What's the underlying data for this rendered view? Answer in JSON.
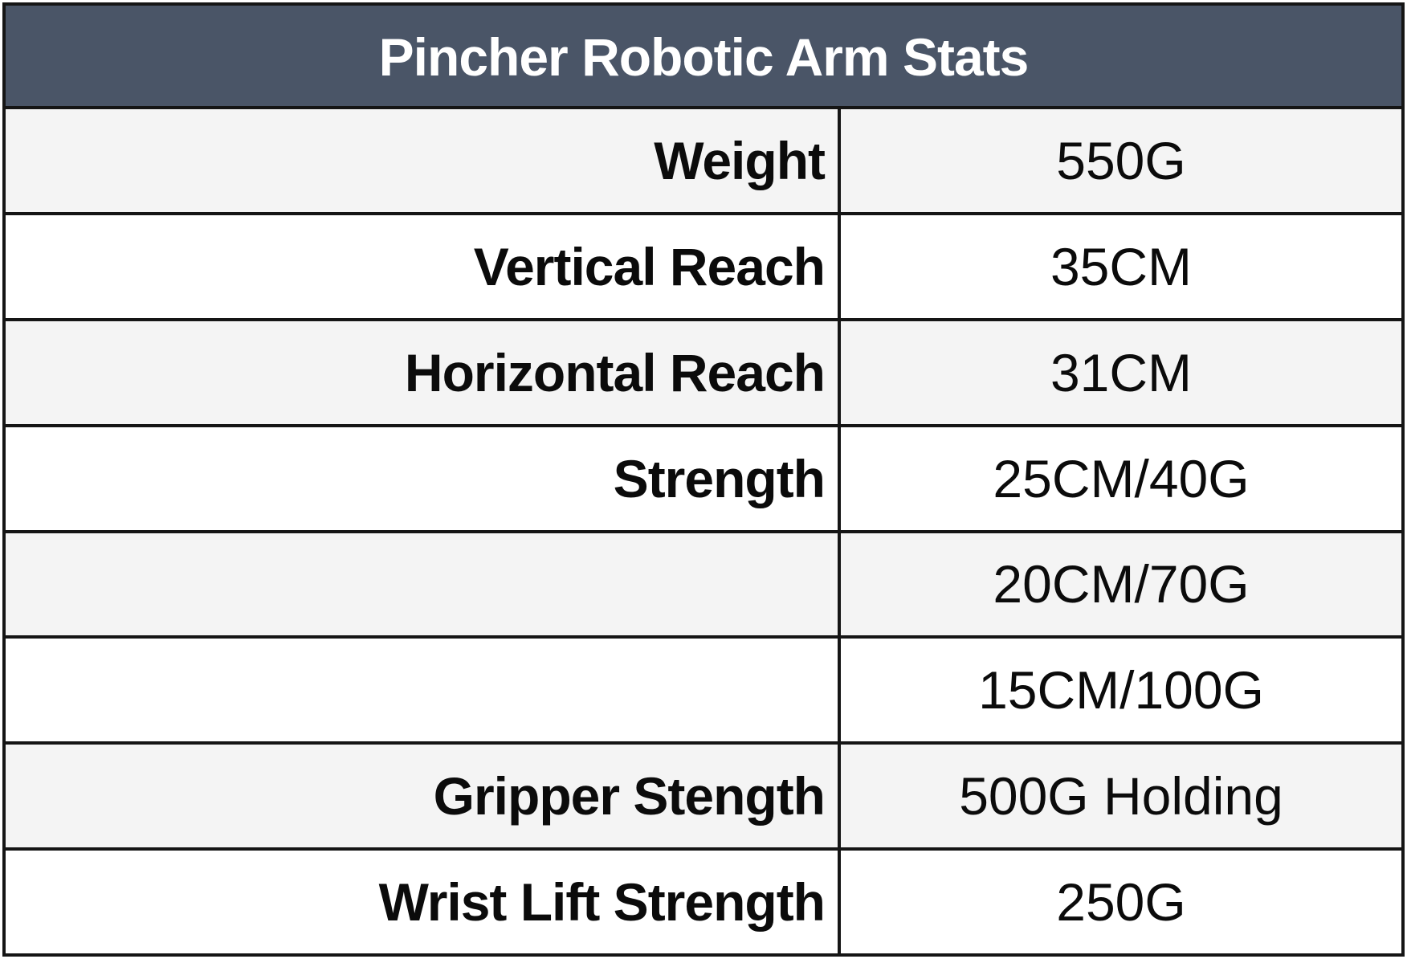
{
  "table": {
    "title": "Pincher Robotic Arm Stats",
    "colors": {
      "header_background": "#4a5567",
      "header_text": "#ffffff",
      "row_shaded": "#f4f4f4",
      "row_plain": "#ffffff",
      "border": "#151515"
    },
    "rows": [
      {
        "label": "Weight",
        "value": "550G"
      },
      {
        "label": "Vertical Reach",
        "value": "35CM"
      },
      {
        "label": "Horizontal Reach",
        "value": "31CM"
      },
      {
        "label": "Strength",
        "value": "25CM/40G"
      },
      {
        "label": "",
        "value": "20CM/70G"
      },
      {
        "label": "",
        "value": "15CM/100G"
      },
      {
        "label": "Gripper Stength",
        "value": "500G Holding"
      },
      {
        "label": "Wrist Lift Strength",
        "value": "250G"
      }
    ]
  }
}
